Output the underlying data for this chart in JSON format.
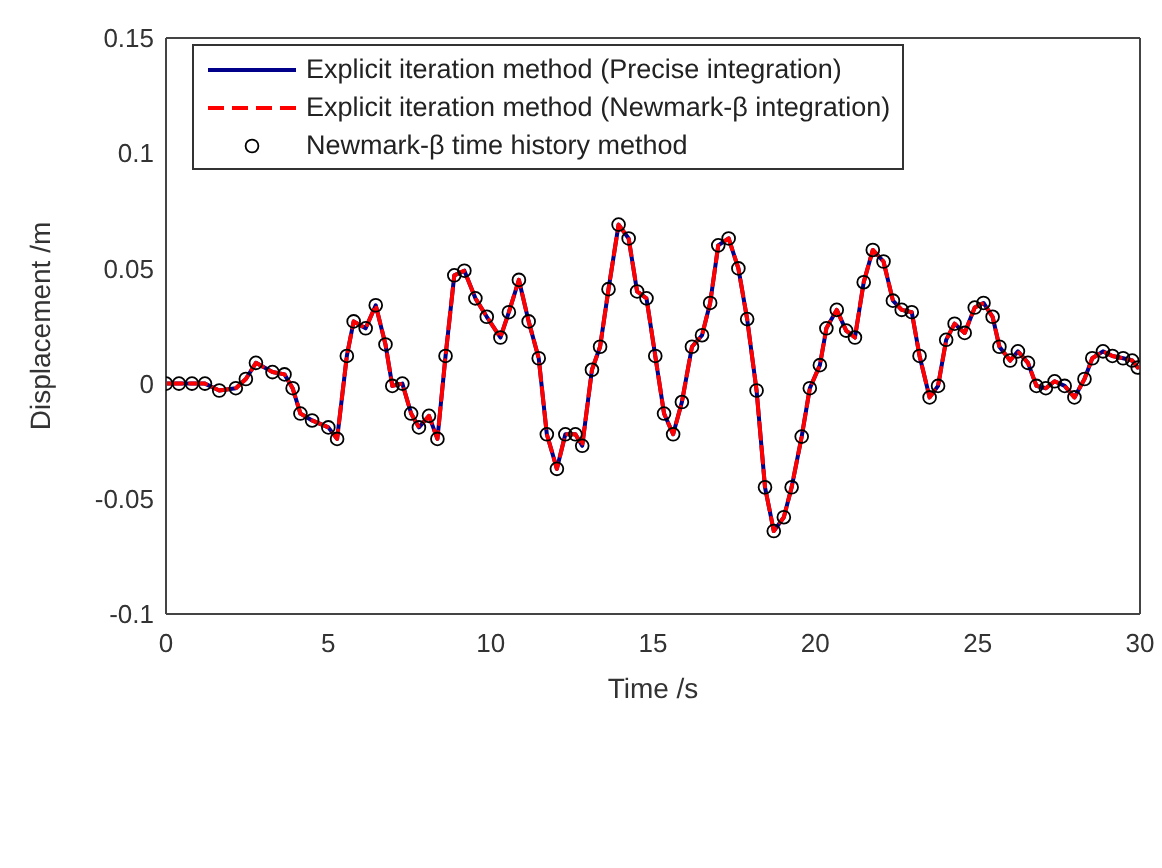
{
  "chart_data": {
    "type": "line",
    "xlabel": "Time /s",
    "ylabel": "Displacement /m",
    "xlim": [
      0,
      30
    ],
    "xticks": [
      0,
      5,
      10,
      15,
      20,
      25,
      30
    ],
    "ylim": [
      -0.1,
      0.15
    ],
    "yticks": [
      -0.1,
      -0.05,
      0,
      0.05,
      0.1,
      0.15
    ],
    "grid": false,
    "legend": "top left",
    "x": [
      0,
      0.4,
      0.8,
      1.2,
      1.64,
      2.15,
      2.46,
      2.77,
      3.28,
      3.65,
      3.9,
      4.14,
      4.5,
      5.0,
      5.27,
      5.57,
      5.78,
      6.15,
      6.46,
      6.76,
      6.97,
      7.28,
      7.55,
      7.79,
      8.1,
      8.36,
      8.61,
      8.88,
      9.19,
      9.53,
      9.88,
      10.3,
      10.56,
      10.87,
      11.17,
      11.48,
      11.73,
      12.04,
      12.3,
      12.61,
      12.82,
      13.12,
      13.37,
      13.63,
      13.94,
      14.25,
      14.51,
      14.8,
      15.07,
      15.34,
      15.62,
      15.89,
      16.2,
      16.51,
      16.76,
      17.01,
      17.33,
      17.63,
      17.9,
      18.19,
      18.45,
      18.72,
      19.03,
      19.27,
      19.58,
      19.83,
      20.14,
      20.34,
      20.66,
      20.95,
      21.22,
      21.49,
      21.77,
      22.1,
      22.39,
      22.66,
      22.97,
      23.21,
      23.52,
      23.78,
      24.03,
      24.29,
      24.6,
      24.91,
      25.18,
      25.46,
      25.67,
      26.0,
      26.24,
      26.55,
      26.81,
      27.1,
      27.37,
      27.68,
      27.98,
      28.29,
      28.53,
      28.86,
      29.15,
      29.48,
      29.76,
      29.93
    ],
    "series": [
      {
        "name": "Explicit iteration method (Precise integration)",
        "color": "#00008b",
        "line_style": "solid",
        "marker": "none",
        "values": [
          0,
          0,
          0,
          0,
          -0.003,
          -0.002,
          0.002,
          0.009,
          0.005,
          0.004,
          -0.002,
          -0.013,
          -0.016,
          -0.019,
          -0.024,
          0.012,
          0.027,
          0.024,
          0.034,
          0.017,
          -0.001,
          0,
          -0.013,
          -0.019,
          -0.014,
          -0.024,
          0.012,
          0.047,
          0.049,
          0.037,
          0.029,
          0.02,
          0.031,
          0.045,
          0.027,
          0.011,
          -0.022,
          -0.037,
          -0.022,
          -0.022,
          -0.027,
          0.006,
          0.016,
          0.041,
          0.069,
          0.063,
          0.04,
          0.037,
          0.012,
          -0.013,
          -0.022,
          -0.008,
          0.016,
          0.021,
          0.035,
          0.06,
          0.063,
          0.05,
          0.028,
          -0.003,
          -0.045,
          -0.064,
          -0.058,
          -0.045,
          -0.023,
          -0.002,
          0.008,
          0.024,
          0.032,
          0.023,
          0.02,
          0.044,
          0.058,
          0.053,
          0.036,
          0.032,
          0.031,
          0.012,
          -0.006,
          -0.001,
          0.019,
          0.026,
          0.022,
          0.033,
          0.035,
          0.029,
          0.016,
          0.01,
          0.014,
          0.009,
          -0.001,
          -0.002,
          0.001,
          -0.001,
          -0.006,
          0.002,
          0.011,
          0.014,
          0.012,
          0.011,
          0.01,
          0.007
        ]
      },
      {
        "name": "Explicit iteration method (Newmark-β integration)",
        "color": "#ff0000",
        "line_style": "dashed",
        "marker": "none",
        "values": [
          0,
          0,
          0,
          0,
          -0.003,
          -0.002,
          0.002,
          0.009,
          0.005,
          0.004,
          -0.002,
          -0.013,
          -0.016,
          -0.019,
          -0.024,
          0.012,
          0.027,
          0.024,
          0.034,
          0.017,
          -0.001,
          0,
          -0.013,
          -0.019,
          -0.014,
          -0.024,
          0.012,
          0.047,
          0.049,
          0.037,
          0.029,
          0.02,
          0.031,
          0.045,
          0.027,
          0.011,
          -0.022,
          -0.037,
          -0.022,
          -0.022,
          -0.027,
          0.006,
          0.016,
          0.041,
          0.069,
          0.063,
          0.04,
          0.037,
          0.012,
          -0.013,
          -0.022,
          -0.008,
          0.016,
          0.021,
          0.035,
          0.06,
          0.063,
          0.05,
          0.028,
          -0.003,
          -0.045,
          -0.064,
          -0.058,
          -0.045,
          -0.023,
          -0.002,
          0.008,
          0.024,
          0.032,
          0.023,
          0.02,
          0.044,
          0.058,
          0.053,
          0.036,
          0.032,
          0.031,
          0.012,
          -0.006,
          -0.001,
          0.019,
          0.026,
          0.022,
          0.033,
          0.035,
          0.029,
          0.016,
          0.01,
          0.014,
          0.009,
          -0.001,
          -0.002,
          0.001,
          -0.001,
          -0.006,
          0.002,
          0.011,
          0.014,
          0.012,
          0.011,
          0.01,
          0.007
        ]
      },
      {
        "name": "Newmark-β time history method",
        "type": "scatter",
        "color": "#000000",
        "marker": "circle",
        "values": [
          0,
          0,
          0,
          0,
          -0.003,
          -0.002,
          0.002,
          0.009,
          0.005,
          0.004,
          -0.002,
          -0.013,
          -0.016,
          -0.019,
          -0.024,
          0.012,
          0.027,
          0.024,
          0.034,
          0.017,
          -0.001,
          0,
          -0.013,
          -0.019,
          -0.014,
          -0.024,
          0.012,
          0.047,
          0.049,
          0.037,
          0.029,
          0.02,
          0.031,
          0.045,
          0.027,
          0.011,
          -0.022,
          -0.037,
          -0.022,
          -0.022,
          -0.027,
          0.006,
          0.016,
          0.041,
          0.069,
          0.063,
          0.04,
          0.037,
          0.012,
          -0.013,
          -0.022,
          -0.008,
          0.016,
          0.021,
          0.035,
          0.06,
          0.063,
          0.05,
          0.028,
          -0.003,
          -0.045,
          -0.064,
          -0.058,
          -0.045,
          -0.023,
          -0.002,
          0.008,
          0.024,
          0.032,
          0.023,
          0.02,
          0.044,
          0.058,
          0.053,
          0.036,
          0.032,
          0.031,
          0.012,
          -0.006,
          -0.001,
          0.019,
          0.026,
          0.022,
          0.033,
          0.035,
          0.029,
          0.016,
          0.01,
          0.014,
          0.009,
          -0.001,
          -0.002,
          0.001,
          -0.001,
          -0.006,
          0.002,
          0.011,
          0.014,
          0.012,
          0.011,
          0.01,
          0.007
        ]
      }
    ]
  }
}
